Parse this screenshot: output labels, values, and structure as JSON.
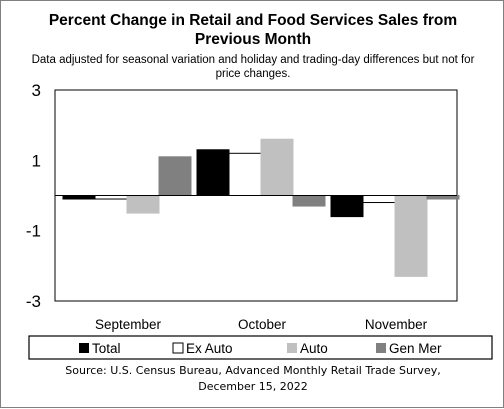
{
  "chart_data": {
    "type": "bar",
    "title": [
      "Percent Change in Retail and Food Services Sales from",
      "Previous Month"
    ],
    "subtitle": [
      "Data adjusted for seasonal variation and holiday and trading-day differences but not for",
      "price changes."
    ],
    "categories": [
      "September",
      "October",
      "November"
    ],
    "series": [
      {
        "name": "Total",
        "values": [
          -0.1,
          1.3,
          -0.6
        ],
        "color": "#000000"
      },
      {
        "name": "Ex Auto",
        "values": [
          -0.1,
          1.2,
          -0.2
        ],
        "color": "#ffffff"
      },
      {
        "name": "Auto",
        "values": [
          -0.5,
          1.6,
          -2.3
        ],
        "color": "#c0c0c0"
      },
      {
        "name": "Gen Mer",
        "values": [
          1.1,
          -0.3,
          -0.1
        ],
        "color": "#808080"
      }
    ],
    "yticks": [
      3,
      1,
      -1,
      -3
    ],
    "ylim": [
      -3,
      3
    ],
    "legend_position": "bottom",
    "grid": false,
    "source": [
      "Source: U.S. Census Bureau, Advanced Monthly Retail Trade Survey,",
      "December 15, 2022"
    ]
  }
}
